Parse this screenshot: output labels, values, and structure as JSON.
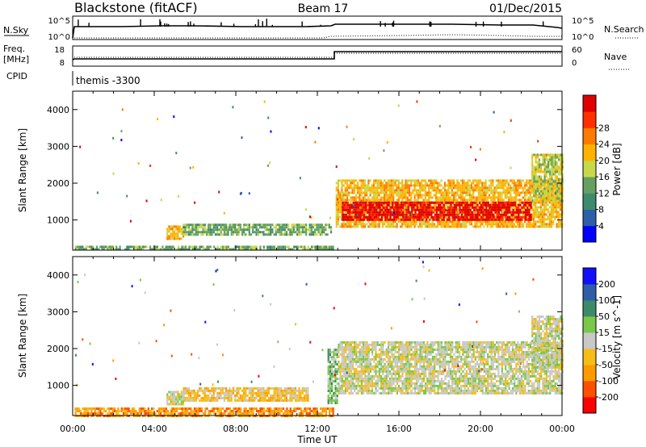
{
  "header": {
    "station": "Blackstone (fitACF)",
    "beam": "Beam 17",
    "date": "01/Dec/2015"
  },
  "top_panels": {
    "noise_label": "N.Sky",
    "noise_search_label": "N.Search",
    "noise_ticks": [
      "10^5",
      "10^0"
    ],
    "freq_label_1": "Freq.",
    "freq_label_2": "[MHz]",
    "freq_ticks": [
      "18",
      "8"
    ],
    "nave_label": "Nave",
    "nave_ticks": [
      "60",
      "0"
    ],
    "cpid_label": "CPID",
    "cpid_value": "themis -3300"
  },
  "colors": {
    "power": [
      "#0000ff",
      "#2c5fa8",
      "#3d8a6e",
      "#66a060",
      "#c7d94a",
      "#ffb300",
      "#ff7a00",
      "#ff3000",
      "#e00000"
    ],
    "velocity": [
      "#ff0000",
      "#ff4f00",
      "#ff9a00",
      "#f6bd16",
      "#c8c8c8",
      "#7ac84a",
      "#3c8a6a",
      "#2e5ea8",
      "#1010ff"
    ]
  },
  "chart_data": [
    {
      "type": "heatmap",
      "name": "power",
      "xlabel": "Time UT",
      "ylabel": "Slant Range [km]",
      "xlim": [
        0,
        24
      ],
      "ylim": [
        180,
        4500
      ],
      "x_ticks": [
        "00:00",
        "04:00",
        "08:00",
        "12:00",
        "16:00",
        "20:00",
        "00:00"
      ],
      "y_ticks": [
        1000,
        2000,
        3000,
        4000
      ],
      "colorbar_label": "Power [dB]",
      "colorbar_ticks": [
        "4",
        "8",
        "12",
        "16",
        "20",
        "24",
        "28"
      ],
      "regions": [
        {
          "t0": 0.1,
          "t1": 12.8,
          "r0": 200,
          "r1": 300,
          "level": 3
        },
        {
          "t0": 4.6,
          "t1": 5.4,
          "r0": 500,
          "r1": 850,
          "level": 5
        },
        {
          "t0": 5.4,
          "t1": 12.7,
          "r0": 600,
          "r1": 900,
          "level": 3
        },
        {
          "t0": 12.9,
          "t1": 24,
          "r0": 800,
          "r1": 2100,
          "level": 5
        },
        {
          "t0": 13.2,
          "t1": 22.5,
          "r0": 1000,
          "r1": 1500,
          "level": 8
        },
        {
          "t0": 22.5,
          "t1": 24,
          "r0": 1500,
          "r1": 2800,
          "level": 4
        }
      ]
    },
    {
      "type": "heatmap",
      "name": "velocity",
      "xlabel": "Time UT",
      "ylabel": "Slant Range [km]",
      "xlim": [
        0,
        24
      ],
      "ylim": [
        180,
        4500
      ],
      "x_ticks": [
        "00:00",
        "04:00",
        "08:00",
        "12:00",
        "16:00",
        "20:00",
        "00:00"
      ],
      "y_ticks": [
        1000,
        2000,
        3000,
        4000
      ],
      "colorbar_label": "Velocity [m s^-1]",
      "colorbar_ticks": [
        "200",
        "100",
        "50",
        "15",
        "-15",
        "-50",
        "-100",
        "-200"
      ],
      "regions": [
        {
          "t0": 0.1,
          "t1": 12.8,
          "r0": 200,
          "r1": 400,
          "level": 2
        },
        {
          "t0": 5.4,
          "t1": 11.5,
          "r0": 600,
          "r1": 950,
          "level": 3
        },
        {
          "t0": 4.6,
          "t1": 5.4,
          "r0": 500,
          "r1": 850,
          "level": 4
        },
        {
          "t0": 12.5,
          "t1": 13.0,
          "r0": 500,
          "r1": 2000,
          "level": 5
        },
        {
          "t0": 13.0,
          "t1": 24,
          "r0": 800,
          "r1": 2200,
          "level": 4
        },
        {
          "t0": 22.5,
          "t1": 24,
          "r0": 1500,
          "r1": 2900,
          "level": 4
        }
      ]
    }
  ]
}
